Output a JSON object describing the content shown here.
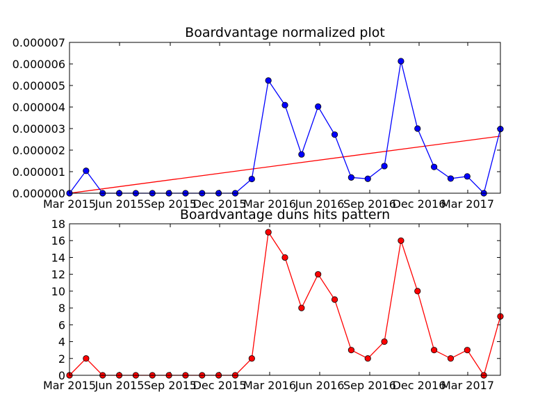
{
  "chart_data": [
    {
      "type": "line",
      "title": "Boardvantage normalized plot",
      "xlabel": "",
      "ylabel": "",
      "x_tick_labels": [
        "Mar 2015",
        "Jun 2015",
        "Sep 2015",
        "Dec 2015",
        "Mar 2016",
        "Jun 2016",
        "Sep 2016",
        "Dec 2016",
        "Mar 2017"
      ],
      "y_tick_labels": [
        "0.000000",
        "0.000001",
        "0.000002",
        "0.000003",
        "0.000004",
        "0.000005",
        "0.000006",
        "0.000007"
      ],
      "ylim": [
        0,
        7e-06
      ],
      "grid": false,
      "series": [
        {
          "color": "#0000ff",
          "marker": "circle",
          "values": [
            0,
            1.04e-06,
            0,
            0,
            0,
            0,
            0,
            0,
            0,
            0,
            0,
            6.6e-07,
            5.23e-06,
            4.09e-06,
            1.8e-06,
            4.02e-06,
            2.72e-06,
            7.3e-07,
            6.7e-07,
            1.26e-06,
            6.13e-06,
            3e-06,
            1.22e-06,
            6.8e-07,
            7.8e-07,
            0,
            2.98e-06
          ]
        },
        {
          "color": "#ff0000",
          "marker": "none",
          "kind": "trend",
          "values_start_end": [
            0,
            2.65e-06
          ]
        }
      ]
    },
    {
      "type": "line",
      "title": "Boardvantage duns hits pattern",
      "xlabel": "",
      "ylabel": "",
      "x_tick_labels": [
        "Mar 2015",
        "Jun 2015",
        "Sep 2015",
        "Dec 2015",
        "Mar 2016",
        "Jun 2016",
        "Sep 2016",
        "Dec 2016",
        "Mar 2017"
      ],
      "y_tick_labels": [
        "0",
        "2",
        "4",
        "6",
        "8",
        "10",
        "12",
        "14",
        "16",
        "18"
      ],
      "ylim": [
        0,
        18
      ],
      "grid": false,
      "series": [
        {
          "color": "#ff0000",
          "marker": "circle",
          "values": [
            0,
            2,
            0,
            0,
            0,
            0,
            0,
            0,
            0,
            0,
            0,
            2,
            17,
            14,
            8,
            12,
            9,
            3,
            2,
            4,
            16,
            10,
            3,
            2,
            3,
            0,
            7
          ]
        }
      ]
    }
  ]
}
